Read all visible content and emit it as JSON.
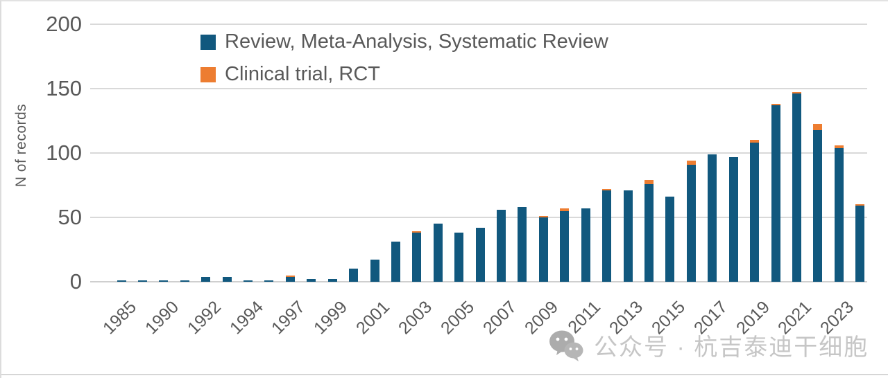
{
  "watermark": {
    "icon": "wechat-icon",
    "text": "公众号 · 杭吉泰迪干细胞"
  },
  "chart_data": {
    "type": "bar",
    "stacked": true,
    "title": "",
    "xlabel": "",
    "ylabel": "N of records",
    "ylim": [
      0,
      200
    ],
    "y_ticks": [
      0,
      50,
      100,
      150,
      200
    ],
    "grid": "horizontal-light-gray",
    "legend_position": "top-left-inside-plot",
    "colors": {
      "review": "#11587E",
      "clinical": "#ED7D31"
    },
    "categories": [
      "1985",
      "1988",
      "1990",
      "1991",
      "1992",
      "1993",
      "1994",
      "1996",
      "1997",
      "1998",
      "1999",
      "2000",
      "2001",
      "2002",
      "2003",
      "2004",
      "2005",
      "2006",
      "2007",
      "2008",
      "2009",
      "2010",
      "2011",
      "2012",
      "2013",
      "2014",
      "2015",
      "2016",
      "2017",
      "2018",
      "2019",
      "2020",
      "2021",
      "2022",
      "2023",
      "2024"
    ],
    "x_tick_labels": [
      "1985",
      "1990",
      "1992",
      "1994",
      "1997",
      "1999",
      "2001",
      "2003",
      "2005",
      "2007",
      "2009",
      "2011",
      "2013",
      "2015",
      "2017",
      "2019",
      "2021",
      "2023"
    ],
    "x_tick_every_n_bars": 2,
    "series": [
      {
        "name": "Review, Meta-Analysis, Systematic Review",
        "color_key": "review",
        "values": [
          1,
          1,
          1,
          1,
          4,
          4,
          1,
          1,
          4,
          2,
          2,
          10,
          17,
          31,
          38,
          45,
          38,
          42,
          56,
          58,
          50,
          55,
          57,
          71,
          71,
          76,
          66,
          91,
          99,
          97,
          108,
          137,
          146,
          118,
          104,
          59
        ]
      },
      {
        "name": "Clinical trial, RCT",
        "color_key": "clinical",
        "values": [
          0,
          0,
          0,
          0,
          0,
          0,
          0,
          0,
          1,
          0,
          0,
          0,
          0,
          0,
          1,
          0,
          0,
          0,
          0,
          0,
          1,
          2,
          0,
          1,
          0,
          3,
          0,
          3,
          0,
          0,
          2,
          1,
          1,
          5,
          2,
          1
        ]
      }
    ]
  }
}
